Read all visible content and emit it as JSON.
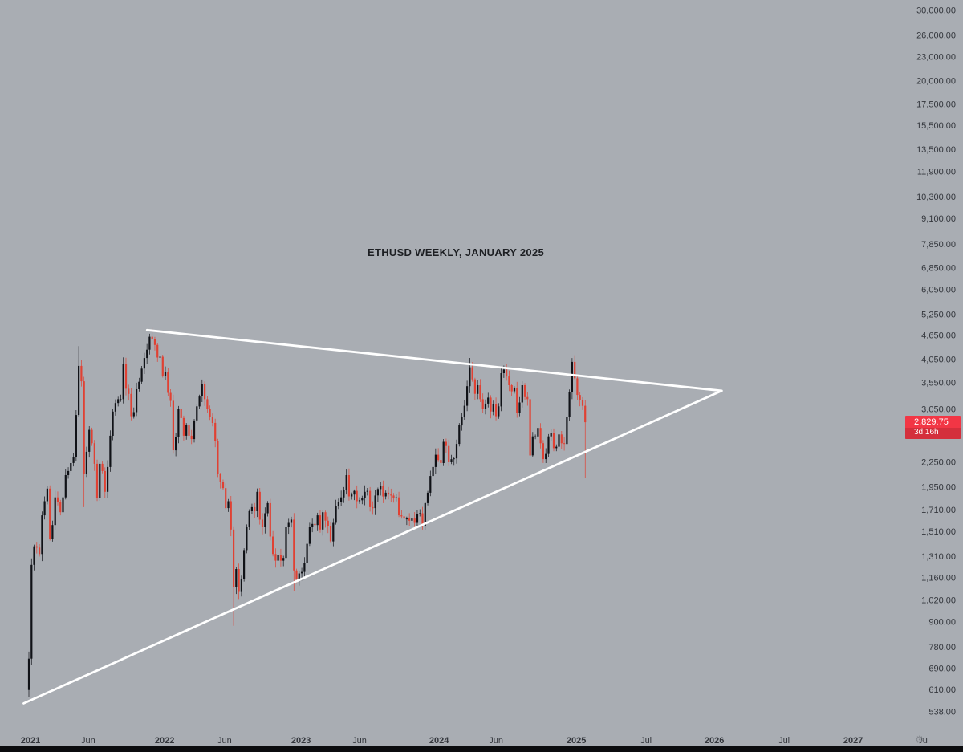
{
  "title": "ETHUSD WEEKLY, JANUARY 2025",
  "price_badge": {
    "price": "2,829.75",
    "countdown": "3d 16h"
  },
  "axis_gear_icon": "⚙",
  "colors": {
    "background": "#a9adb3",
    "candle_up": "#101217",
    "candle_down": "#e04133",
    "trendline": "#ffffff",
    "badge_bg": "#f23645",
    "badge_text": "#ffffff",
    "axis_text": "#33363c",
    "title_text": "#1d1f23",
    "bottom_bar": "#0b0c0e"
  },
  "chart_data": {
    "type": "candlestick",
    "title": "ETHUSD WEEKLY, JANUARY 2025",
    "symbol": "ETHUSD",
    "timeframe": "weekly",
    "scale": "logarithmic",
    "grid": false,
    "legend": false,
    "last_price": 2829.75,
    "first_open": 610,
    "weekly_closes": [
      730,
      1250,
      1390,
      1380,
      1330,
      1660,
      1800,
      1935,
      1450,
      1570,
      1840,
      1790,
      1690,
      1840,
      2090,
      2140,
      2240,
      2320,
      2950,
      3910,
      3580,
      2100,
      2390,
      2710,
      2510,
      2230,
      1830,
      2230,
      2140,
      1900,
      2190,
      2620,
      3010,
      3160,
      3230,
      3230,
      3950,
      3430,
      3330,
      2930,
      3000,
      3420,
      3570,
      3850,
      4090,
      4290,
      4620,
      4560,
      4410,
      4100,
      4120,
      3690,
      3770,
      3350,
      3200,
      2410,
      2600,
      3060,
      2900,
      2620,
      2780,
      2620,
      2570,
      2860,
      3100,
      3280,
      3520,
      3230,
      3060,
      2920,
      2820,
      2540,
      2100,
      2010,
      1940,
      1730,
      1800,
      1530,
      1100,
      1220,
      1070,
      1150,
      1360,
      1550,
      1700,
      1740,
      1700,
      1900,
      1620,
      1550,
      1680,
      1780,
      1470,
      1330,
      1280,
      1320,
      1280,
      1300,
      1550,
      1590,
      1620,
      1210,
      1150,
      1190,
      1200,
      1260,
      1410,
      1550,
      1580,
      1570,
      1660,
      1530,
      1690,
      1610,
      1560,
      1430,
      1590,
      1750,
      1790,
      1840,
      1920,
      2090,
      1850,
      1870,
      1910,
      1800,
      1810,
      1830,
      1900,
      1910,
      1740,
      1730,
      1860,
      1930,
      1960,
      1850,
      1890,
      1870,
      1860,
      1830,
      1840,
      1660,
      1650,
      1630,
      1630,
      1610,
      1630,
      1590,
      1670,
      1680,
      1560,
      1780,
      1890,
      2080,
      2190,
      2350,
      2280,
      2240,
      2530,
      2470,
      2250,
      2290,
      2300,
      2500,
      2780,
      2920,
      3110,
      3480,
      3880,
      3620,
      3330,
      3500,
      3230,
      3060,
      3150,
      3260,
      3010,
      3140,
      2930,
      3100,
      3750,
      3830,
      3680,
      3500,
      3380,
      3440,
      2980,
      3170,
      3500,
      3270,
      3230,
      2340,
      2610,
      2610,
      2740,
      2510,
      2290,
      2360,
      2610,
      2660,
      2440,
      2460,
      2640,
      2510,
      2500,
      2920,
      3360,
      4000,
      3640,
      3310,
      3220,
      3110,
      2829.75
    ],
    "wick_overrides": {
      "0": {
        "low": 585,
        "high": 760
      },
      "19": {
        "high": 4380
      },
      "21": {
        "low": 1740
      },
      "47": {
        "high": 4868
      },
      "78": {
        "low": 881
      },
      "101": {
        "low": 1075
      },
      "168": {
        "high": 4093
      },
      "191": {
        "low": 2111
      },
      "207": {
        "high": 4090
      },
      "212": {
        "low": 2060
      }
    },
    "trendlines": [
      {
        "name": "upper",
        "points": [
          {
            "week": 45,
            "price": 4800
          },
          {
            "week": 264,
            "price": 3390
          }
        ]
      },
      {
        "name": "lower",
        "points": [
          {
            "week": -2,
            "price": 565
          },
          {
            "week": 264,
            "price": 3390
          }
        ]
      }
    ],
    "y_axis_labels": [
      "30,000.00",
      "26,000.00",
      "23,000.00",
      "20,000.00",
      "17,500.00",
      "15,500.00",
      "13,500.00",
      "11,900.00",
      "10,300.00",
      "9,100.00",
      "7,850.00",
      "6,850.00",
      "6,050.00",
      "5,250.00",
      "4,650.00",
      "4,050.00",
      "3,550.00",
      "3,050.00",
      "2,250.00",
      "1,950.00",
      "1,710.00",
      "1,510.00",
      "1,310.00",
      "1,160.00",
      "1,020.00",
      "900.00",
      "780.00",
      "690.00",
      "610.00",
      "538.00"
    ],
    "x_axis_labels": [
      {
        "label": "2021",
        "week": 0.6,
        "major": true
      },
      {
        "label": "Jun",
        "week": 22.6,
        "major": false
      },
      {
        "label": "2022",
        "week": 51.7,
        "major": true
      },
      {
        "label": "Jun",
        "week": 74.6,
        "major": false
      },
      {
        "label": "2023",
        "week": 103.7,
        "major": true
      },
      {
        "label": "Jun",
        "week": 126.0,
        "major": false
      },
      {
        "label": "2024",
        "week": 156.3,
        "major": true
      },
      {
        "label": "Jun",
        "week": 178.0,
        "major": false
      },
      {
        "label": "2025",
        "week": 208.6,
        "major": true
      },
      {
        "label": "Jul",
        "week": 235.2,
        "major": false
      },
      {
        "label": "2026",
        "week": 261.2,
        "major": true
      },
      {
        "label": "Jul",
        "week": 287.8,
        "major": false
      },
      {
        "label": "2027",
        "week": 314.1,
        "major": true
      },
      {
        "label": "Ju",
        "week": 340.7,
        "major": false
      }
    ]
  }
}
